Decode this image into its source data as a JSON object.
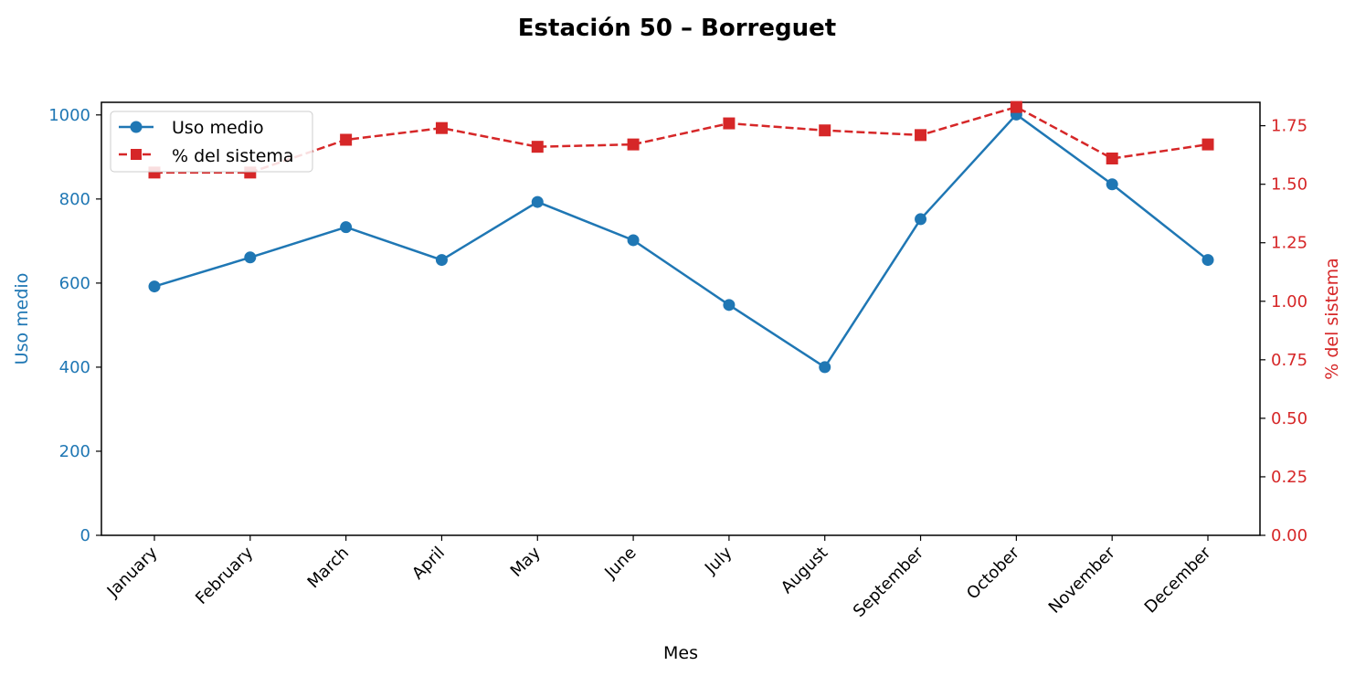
{
  "chart_data": {
    "type": "line",
    "title": "Estación 50 – Borreguet",
    "xlabel": "Mes",
    "categories": [
      "January",
      "February",
      "March",
      "April",
      "May",
      "June",
      "July",
      "August",
      "September",
      "October",
      "November",
      "December"
    ],
    "left_axis": {
      "label": "Uso medio",
      "color": "#1f77b4",
      "ylim": [
        0,
        1030
      ],
      "ticks": [
        "0",
        "200",
        "400",
        "600",
        "800",
        "1000"
      ]
    },
    "right_axis": {
      "label": "% del sistema",
      "color": "#d62728",
      "ylim": [
        0,
        1.85
      ],
      "ticks": [
        "0.00",
        "0.25",
        "0.50",
        "0.75",
        "1.00",
        "1.25",
        "1.50",
        "1.75"
      ]
    },
    "series": [
      {
        "name": "Uso medio",
        "axis": "left",
        "color": "#1f77b4",
        "marker": "circle",
        "linestyle": "solid",
        "values": [
          592,
          661,
          733,
          655,
          793,
          702,
          548,
          400,
          752,
          1001,
          835,
          655
        ]
      },
      {
        "name": "% del sistema",
        "axis": "right",
        "color": "#d62728",
        "marker": "square",
        "linestyle": "dashed",
        "values": [
          1.55,
          1.55,
          1.69,
          1.74,
          1.66,
          1.67,
          1.76,
          1.73,
          1.71,
          1.83,
          1.61,
          1.67
        ]
      }
    ],
    "legend_position": "upper-left",
    "grid": false
  }
}
